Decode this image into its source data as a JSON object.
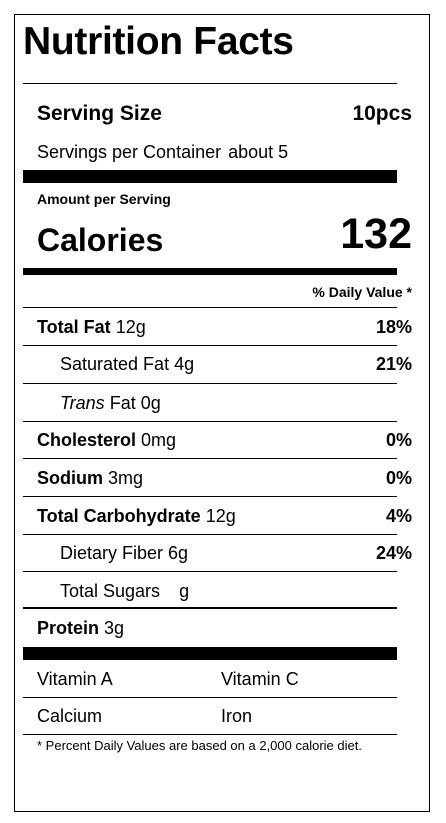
{
  "title": "Nutrition Facts",
  "serving": {
    "size_label": "Serving Size",
    "size_value": "10pcs",
    "per_container_label": "Servings per Container",
    "per_container_value": "about 5"
  },
  "amount_per_serving_label": "Amount per Serving",
  "calories": {
    "label": "Calories",
    "value": "132"
  },
  "daily_value_header": "% Daily Value *",
  "nutrients": {
    "total_fat": {
      "label": "Total Fat",
      "amount": "12g",
      "dv": "18%"
    },
    "saturated_fat": {
      "label": "Saturated Fat",
      "amount": "4g",
      "dv": "21%"
    },
    "trans_fat": {
      "label_italic": "Trans",
      "label_rest": "Fat",
      "amount": "0g"
    },
    "cholesterol": {
      "label": "Cholesterol",
      "amount": "0mg",
      "dv": "0%"
    },
    "sodium": {
      "label": "Sodium",
      "amount": "3mg",
      "dv": "0%"
    },
    "total_carbohydrate": {
      "label": "Total Carbohydrate",
      "amount": "12g",
      "dv": "4%"
    },
    "dietary_fiber": {
      "label": "Dietary Fiber",
      "amount": "6g",
      "dv": "24%"
    },
    "total_sugars": {
      "label": "Total Sugars",
      "amount": "g"
    },
    "protein": {
      "label": "Protein",
      "amount": "3g"
    }
  },
  "vitamins": {
    "vitamin_a": "Vitamin A",
    "vitamin_c": "Vitamin C",
    "calcium": "Calcium",
    "iron": "Iron"
  },
  "footnote": "* Percent Daily Values are based on a 2,000 calorie diet."
}
